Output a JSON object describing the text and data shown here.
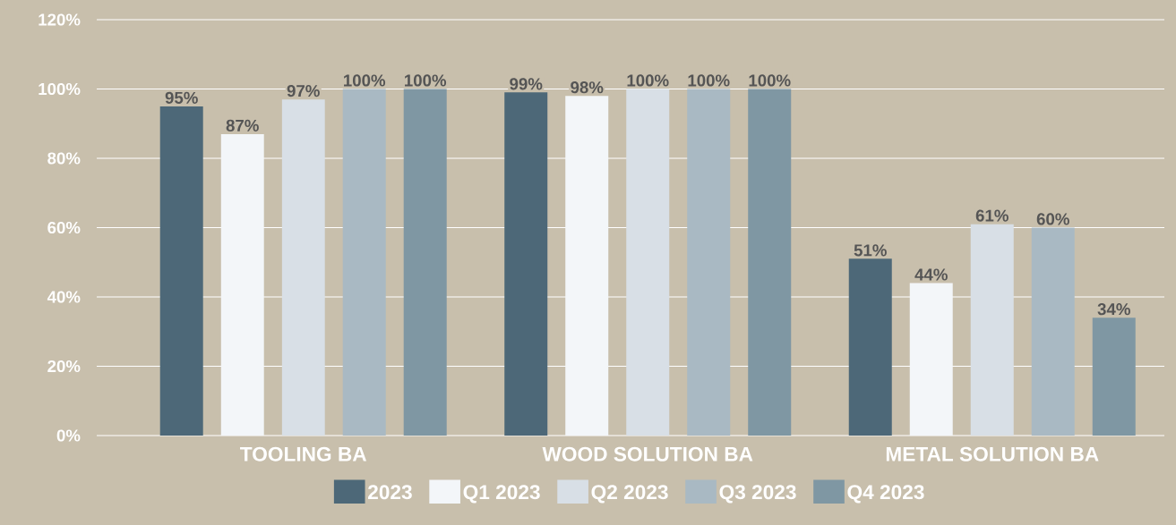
{
  "chart_data": {
    "type": "bar",
    "categories": [
      "TOOLING BA",
      "WOOD SOLUTION BA",
      "METAL SOLUTION BA"
    ],
    "series": [
      {
        "name": "2023",
        "color": "#4d6878",
        "values": [
          95,
          99,
          51
        ],
        "value_labels": [
          "95%",
          "99%",
          "51%"
        ]
      },
      {
        "name": "Q1 2023",
        "color": "#f3f6f9",
        "values": [
          87,
          98,
          44
        ],
        "value_labels": [
          "87%",
          "98%",
          "44%"
        ]
      },
      {
        "name": "Q2 2023",
        "color": "#d8dfe6",
        "values": [
          97,
          100,
          61
        ],
        "value_labels": [
          "97%",
          "100%",
          "61%"
        ]
      },
      {
        "name": "Q3 2023",
        "color": "#a9b9c3",
        "values": [
          100,
          100,
          60
        ],
        "value_labels": [
          "100%",
          "100%",
          "60%"
        ]
      },
      {
        "name": "Q4 2023",
        "color": "#7f97a3",
        "values": [
          100,
          100,
          34
        ],
        "value_labels": [
          "100%",
          "100%",
          "34%"
        ]
      }
    ],
    "ylim": [
      0,
      120
    ],
    "yticks": [
      {
        "value": 0,
        "label": "0%"
      },
      {
        "value": 20,
        "label": "20%"
      },
      {
        "value": 40,
        "label": "40%"
      },
      {
        "value": 60,
        "label": "60%"
      },
      {
        "value": 80,
        "label": "80%"
      },
      {
        "value": 100,
        "label": "100%"
      },
      {
        "value": 120,
        "label": "120%"
      }
    ],
    "grid": "y",
    "legend": "bottom"
  }
}
